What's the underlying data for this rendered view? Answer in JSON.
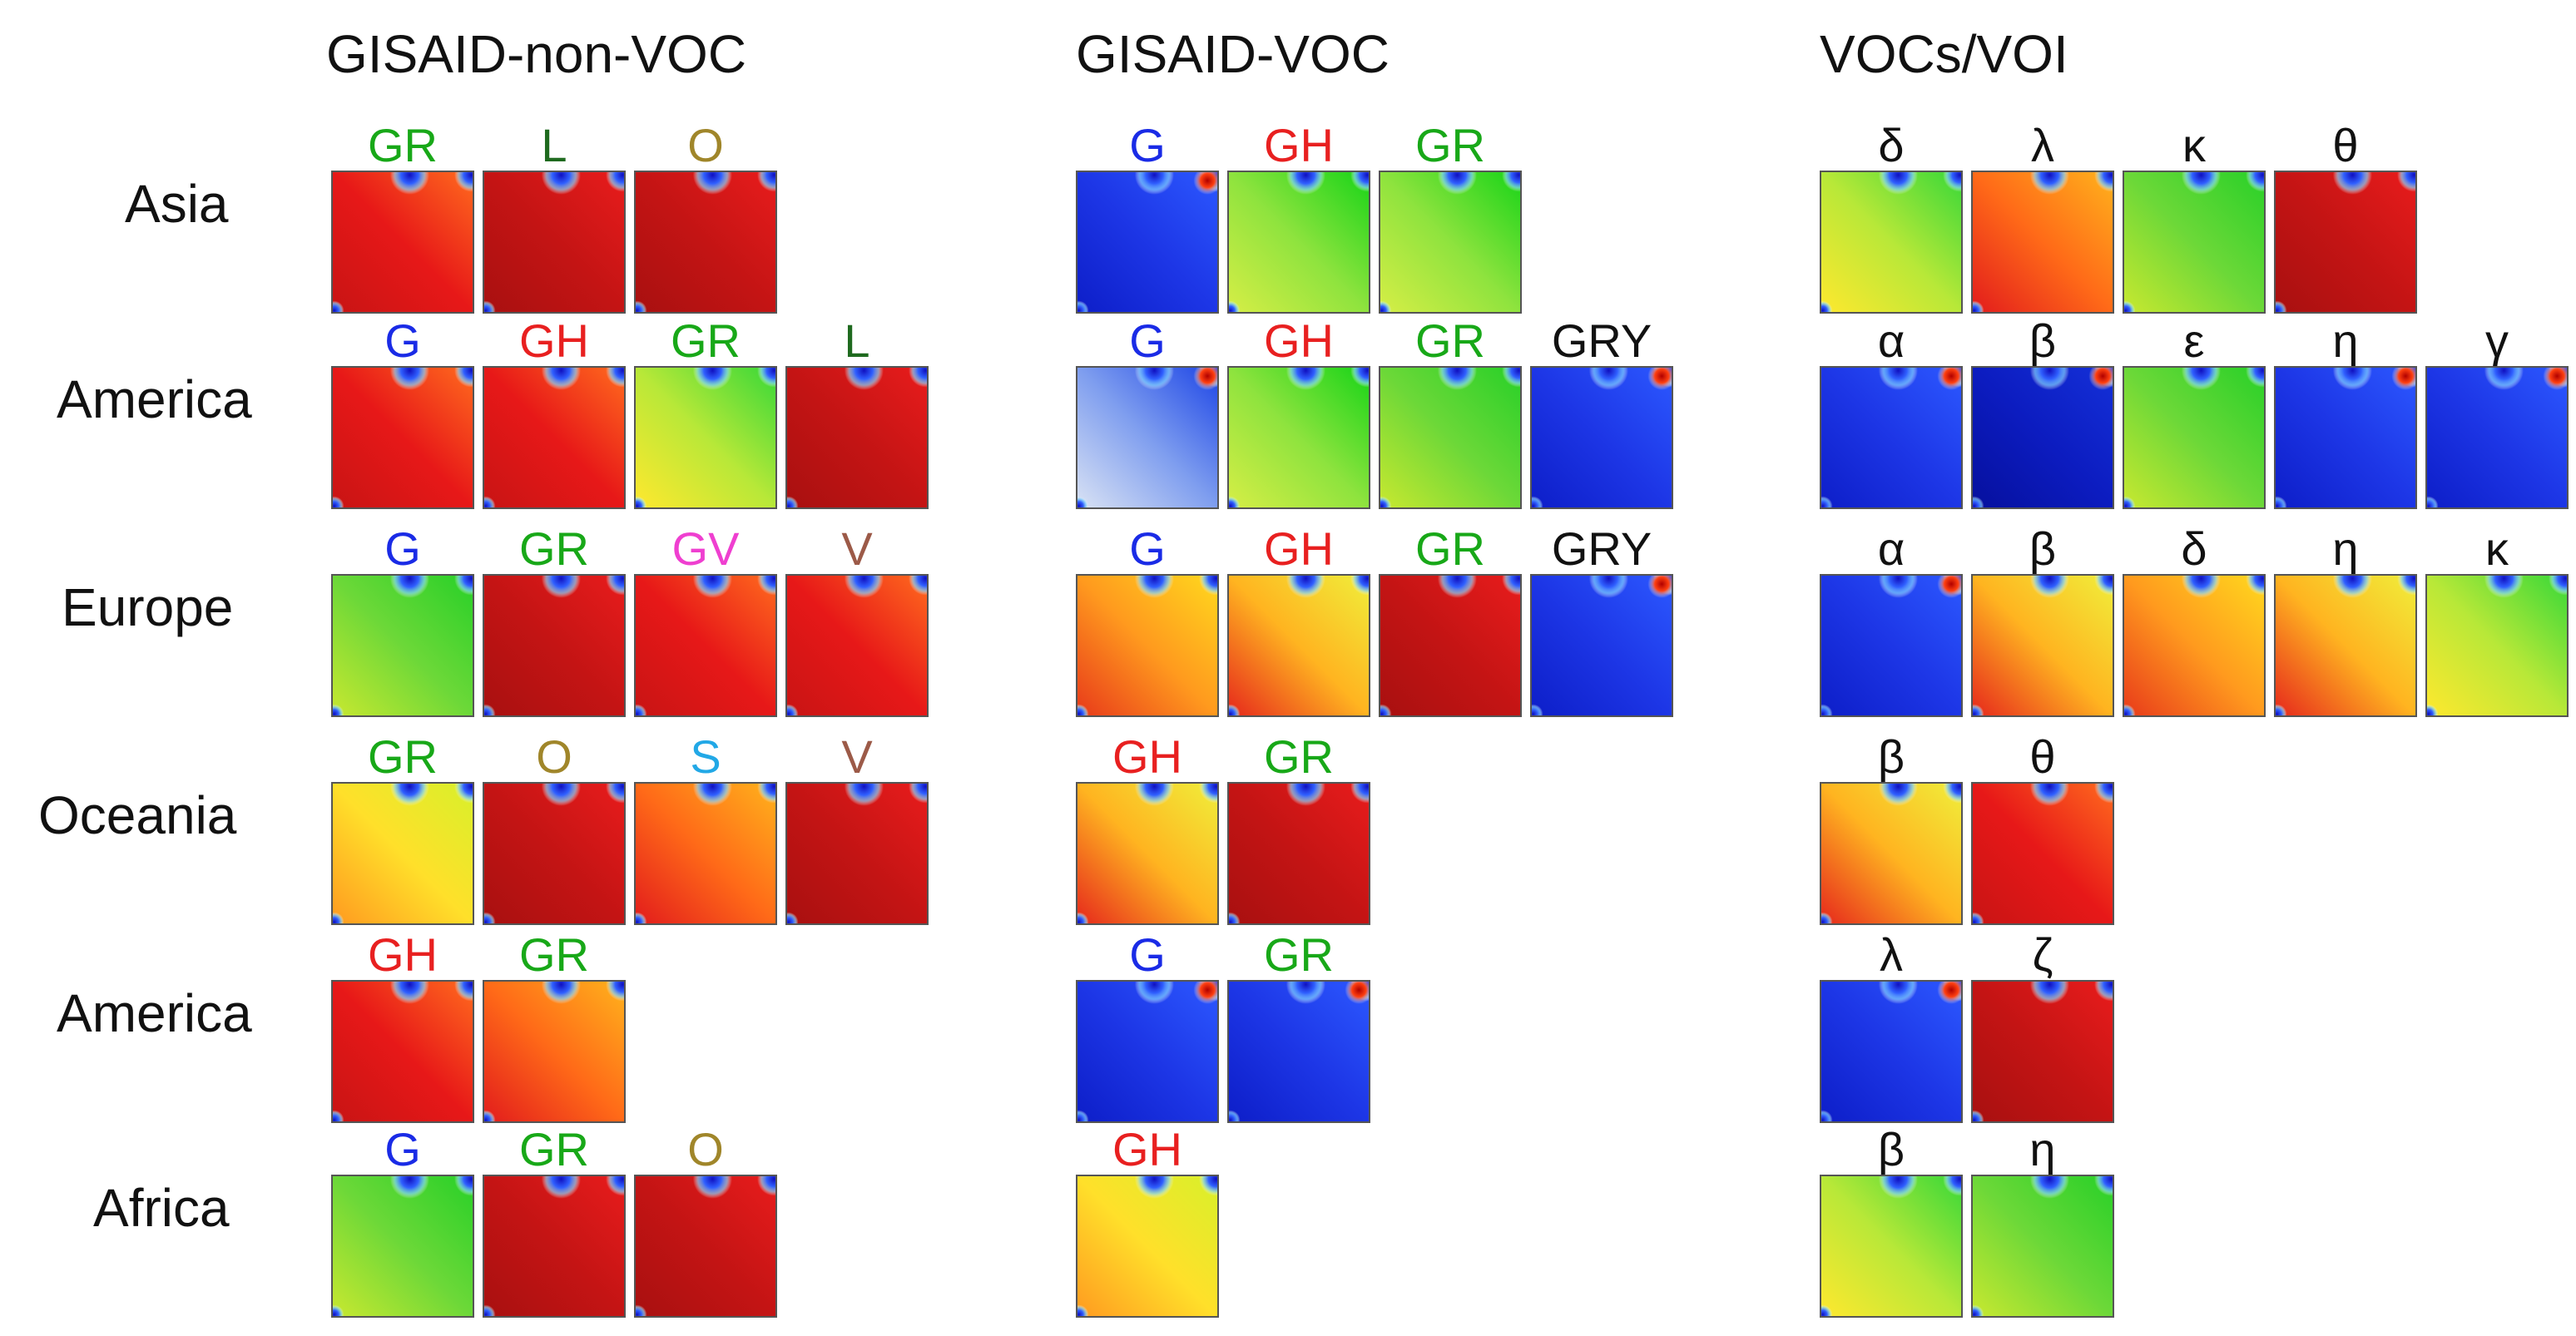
{
  "columns": [
    {
      "title": "GISAID-non-VOC"
    },
    {
      "title": "GISAID-VOC"
    },
    {
      "title": "VOCs/VOI"
    }
  ],
  "rows": [
    {
      "label": "Asia"
    },
    {
      "label": "America"
    },
    {
      "label": "Europe"
    },
    {
      "label": "Oceania"
    },
    {
      "label": "America"
    },
    {
      "label": "Africa"
    }
  ],
  "label_colors": {
    "G": "#1a2be6",
    "GH": "#e82020",
    "GR": "#18a818",
    "GRY": "#111111",
    "GV": "#ef3fd0",
    "L": "#1f6a1f",
    "O": "#a0862a",
    "S": "#22a8e6",
    "V": "#9c5a48",
    "greek": "#111111"
  },
  "panels": [
    [
      [
        {
          "label": "GR",
          "style": "red"
        },
        {
          "label": "L",
          "style": "red-dark"
        },
        {
          "label": "O",
          "style": "red-dark"
        }
      ],
      [
        {
          "label": "G",
          "style": "blue"
        },
        {
          "label": "GH",
          "style": "green-light"
        },
        {
          "label": "GR",
          "style": "green-light"
        }
      ],
      [
        {
          "label": "δ",
          "style": "yellow-green"
        },
        {
          "label": "λ",
          "style": "orange-red"
        },
        {
          "label": "κ",
          "style": "green"
        },
        {
          "label": "θ",
          "style": "red-dark"
        }
      ]
    ],
    [
      [
        {
          "label": "G",
          "style": "red"
        },
        {
          "label": "GH",
          "style": "red"
        },
        {
          "label": "GR",
          "style": "yellow-green"
        },
        {
          "label": "L",
          "style": "red-dark"
        }
      ],
      [
        {
          "label": "G",
          "style": "blue-light"
        },
        {
          "label": "GH",
          "style": "green-light"
        },
        {
          "label": "GR",
          "style": "green"
        },
        {
          "label": "GRY",
          "style": "blue"
        }
      ],
      [
        {
          "label": "α",
          "style": "blue"
        },
        {
          "label": "β",
          "style": "blue-dark"
        },
        {
          "label": "ε",
          "style": "green"
        },
        {
          "label": "η",
          "style": "blue"
        },
        {
          "label": "γ",
          "style": "blue"
        }
      ]
    ],
    [
      [
        {
          "label": "G",
          "style": "green"
        },
        {
          "label": "GR",
          "style": "red-dark"
        },
        {
          "label": "GV",
          "style": "red"
        },
        {
          "label": "V",
          "style": "red"
        }
      ],
      [
        {
          "label": "G",
          "style": "orange-yellow"
        },
        {
          "label": "GH",
          "style": "yellow-red"
        },
        {
          "label": "GR",
          "style": "red-dark"
        },
        {
          "label": "GRY",
          "style": "blue"
        }
      ],
      [
        {
          "label": "α",
          "style": "blue"
        },
        {
          "label": "β",
          "style": "yellow-red"
        },
        {
          "label": "δ",
          "style": "orange-yellow"
        },
        {
          "label": "η",
          "style": "yellow-red"
        },
        {
          "label": "κ",
          "style": "yellow-green"
        }
      ]
    ],
    [
      [
        {
          "label": "GR",
          "style": "yellow"
        },
        {
          "label": "O",
          "style": "red-dark"
        },
        {
          "label": "S",
          "style": "orange-red"
        },
        {
          "label": "V",
          "style": "red-dark"
        }
      ],
      [
        {
          "label": "GH",
          "style": "yellow-red"
        },
        {
          "label": "GR",
          "style": "red-dark"
        }
      ],
      [
        {
          "label": "β",
          "style": "yellow-red"
        },
        {
          "label": "θ",
          "style": "red"
        }
      ]
    ],
    [
      [
        {
          "label": "GH",
          "style": "red"
        },
        {
          "label": "GR",
          "style": "orange-red"
        }
      ],
      [
        {
          "label": "G",
          "style": "blue"
        },
        {
          "label": "GR",
          "style": "blue"
        }
      ],
      [
        {
          "label": "λ",
          "style": "blue"
        },
        {
          "label": "ζ",
          "style": "red-dark"
        }
      ]
    ],
    [
      [
        {
          "label": "G",
          "style": "green"
        },
        {
          "label": "GR",
          "style": "red-dark"
        },
        {
          "label": "O",
          "style": "red-dark"
        }
      ],
      [
        {
          "label": "GH",
          "style": "yellow"
        }
      ],
      [
        {
          "label": "β",
          "style": "yellow-green"
        },
        {
          "label": "η",
          "style": "green"
        }
      ]
    ]
  ]
}
